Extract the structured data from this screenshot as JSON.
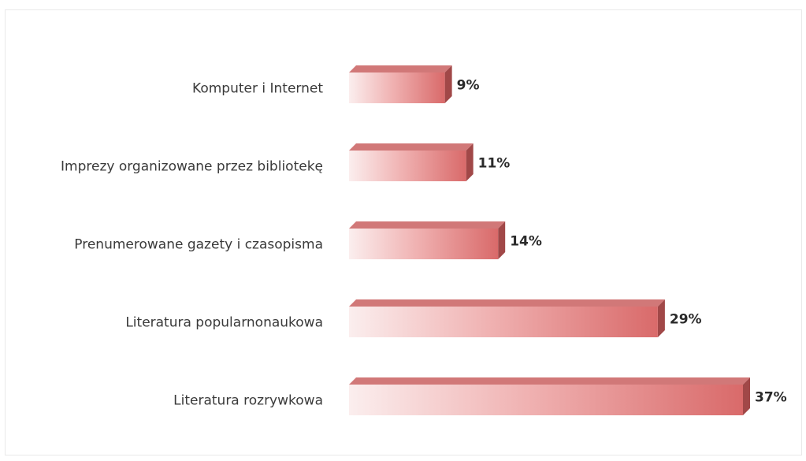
{
  "chart_data": {
    "type": "bar",
    "orientation": "horizontal",
    "categories": [
      "Komputer i Internet",
      "Imprezy organizowane przez bibliotekę",
      "Prenumerowane gazety i czasopisma",
      "Literatura popularnonaukowa",
      "Literatura rozrywkowa"
    ],
    "values": [
      9,
      11,
      14,
      29,
      37
    ],
    "value_labels": [
      "9%",
      "11%",
      "14%",
      "29%",
      "37%"
    ],
    "unit": "%",
    "xlim": [
      0,
      37
    ],
    "title": "",
    "xlabel": "",
    "ylabel": "",
    "grid": false,
    "legend": "none",
    "style": "3d",
    "colors": {
      "bar_front_light": "#fbeeee",
      "bar_front_dark": "#d96a6a",
      "bar_top": "#c96060",
      "bar_side": "#a14848"
    }
  }
}
